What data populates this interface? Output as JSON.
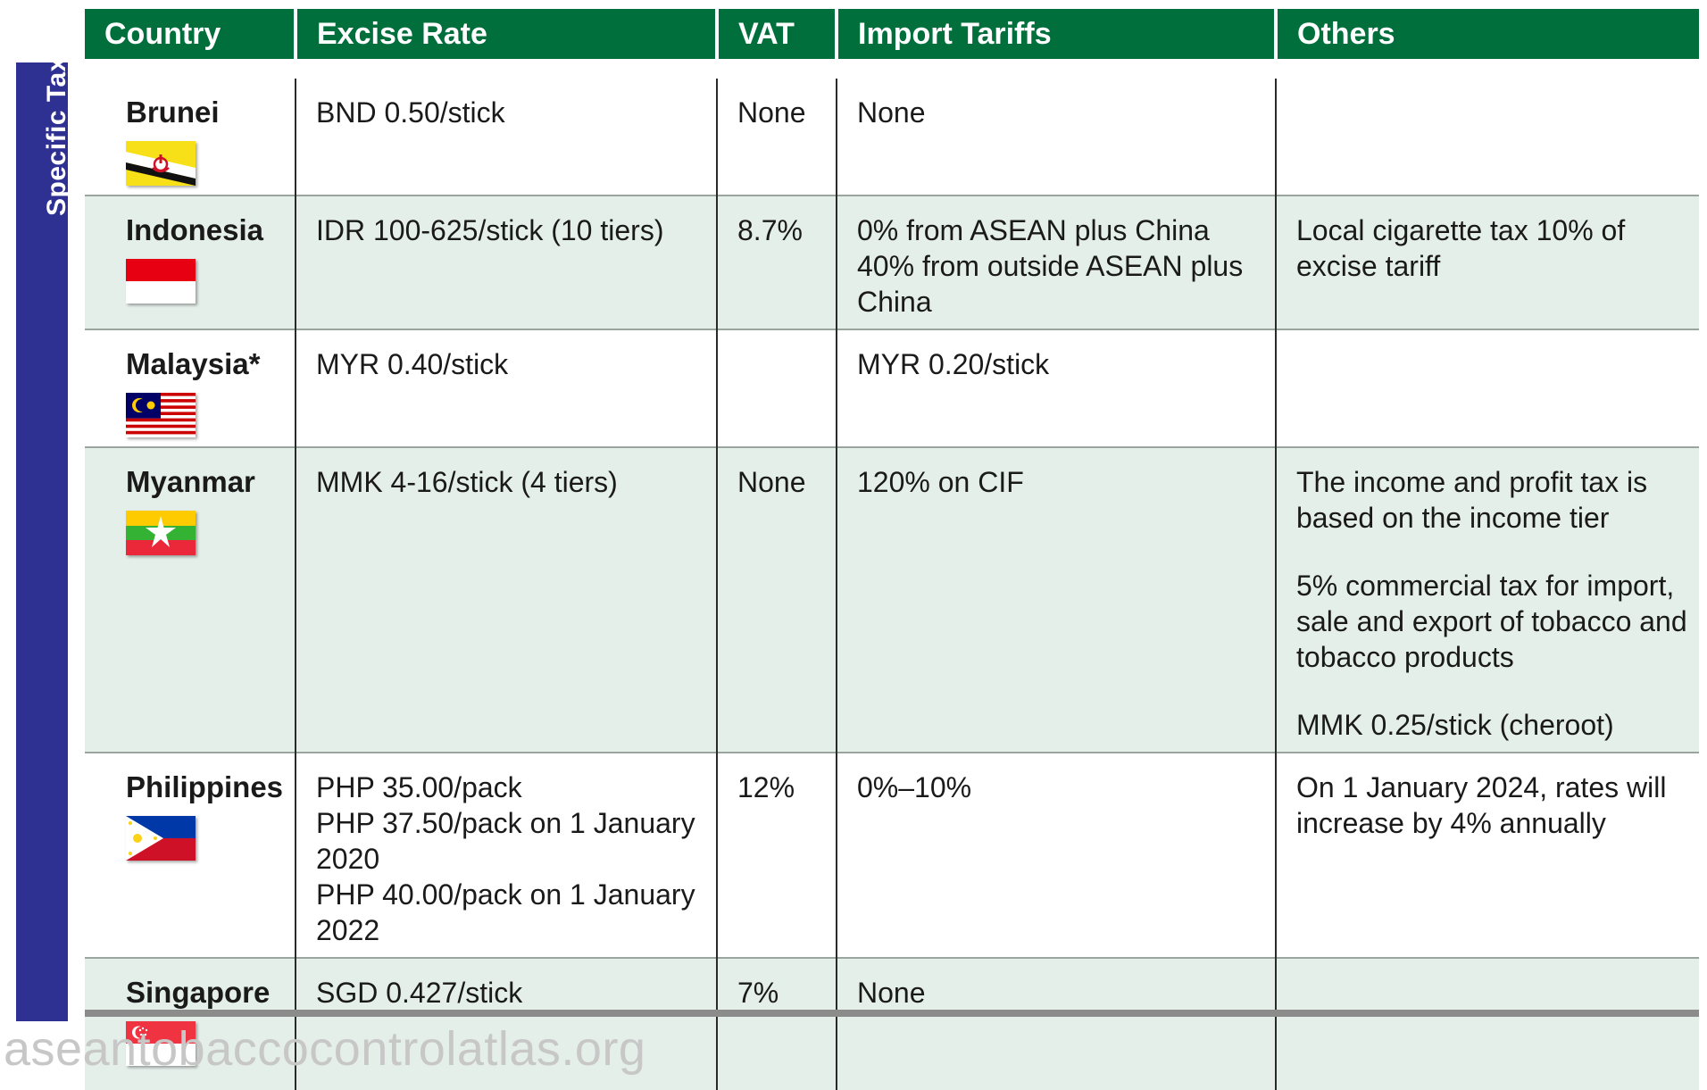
{
  "side_label": "Specific Tax",
  "headers": [
    "Country",
    "Excise Rate",
    "VAT",
    "Import Tariffs",
    "Others"
  ],
  "rows": [
    {
      "country": "Brunei",
      "excise": [
        "BND 0.50/stick"
      ],
      "vat": "None",
      "import": [
        "None"
      ],
      "others": []
    },
    {
      "country": "Indonesia",
      "excise": [
        "IDR 100-625/stick (10 tiers)"
      ],
      "vat": "8.7%",
      "import": [
        "0% from ASEAN plus China",
        "40% from outside ASEAN plus China"
      ],
      "others": [
        "Local cigarette tax 10% of excise tariff"
      ]
    },
    {
      "country": "Malaysia*",
      "excise": [
        "MYR 0.40/stick"
      ],
      "vat": "",
      "import": [
        "MYR 0.20/stick"
      ],
      "others": []
    },
    {
      "country": "Myanmar",
      "excise": [
        "MMK 4-16/stick (4 tiers)"
      ],
      "vat": "None",
      "import": [
        "120% on CIF"
      ],
      "others": [
        "The income and profit tax is based on the income tier",
        "5% commercial tax for import, sale and export of tobacco and tobacco products",
        "MMK 0.25/stick (cheroot)"
      ]
    },
    {
      "country": "Philippines",
      "excise": [
        "PHP 35.00/pack",
        "PHP 37.50/pack on 1 January 2020",
        "PHP 40.00/pack on 1 January 2022"
      ],
      "vat": "12%",
      "import": [
        "0%–10%"
      ],
      "others": [
        "On 1 January 2024, rates will increase by 4% annually"
      ]
    },
    {
      "country": "Singapore",
      "excise": [
        "SGD 0.427/stick"
      ],
      "vat": "7%",
      "import": [
        "None"
      ],
      "others": []
    }
  ],
  "watermark": "aseantobaccocontrolatlas.org"
}
